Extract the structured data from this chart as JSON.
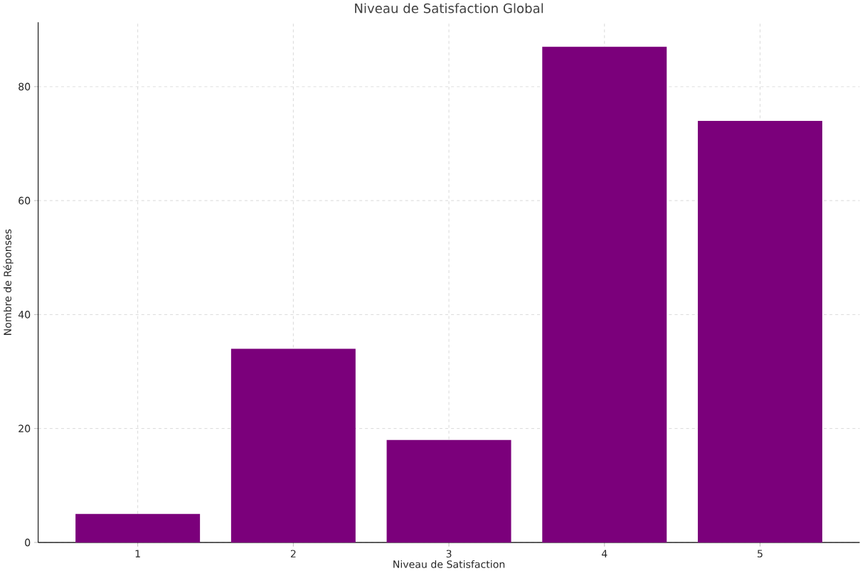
{
  "chart_data": {
    "type": "bar",
    "title": "Niveau de Satisfaction Global",
    "xlabel": "Niveau de Satisfaction",
    "ylabel": "Nombre de Réponses",
    "categories": [
      "1",
      "2",
      "3",
      "4",
      "5"
    ],
    "values": [
      5,
      34,
      18,
      87,
      74
    ],
    "color": "#7b007b",
    "ylim": [
      0,
      91.3
    ],
    "yticks": [
      0,
      20,
      40,
      60,
      80
    ],
    "grid": true
  }
}
